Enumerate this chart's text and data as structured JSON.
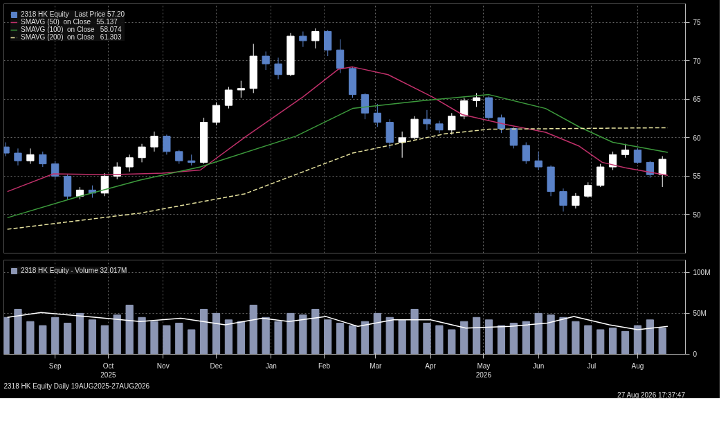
{
  "chart_data": [
    {
      "type": "candlestick",
      "legend": "top left",
      "grid": true,
      "tick_labels": "y",
      "xlim": [
        "2025-08-17",
        "2026-09-06"
      ],
      "ylim": [
        45,
        77.4
      ],
      "yticks": [
        50,
        55,
        60,
        65,
        70,
        75
      ],
      "xticks": [
        "2025-09-15",
        "2025-10-15",
        "2025-11-15",
        "2025-12-15",
        "2026-01-15",
        "2026-02-14",
        "2026-03-15",
        "2026-04-15",
        "2026-05-15",
        "2026-06-15",
        "2026-07-15",
        "2026-08-10"
      ],
      "series": [
        {
          "name": "2318 HK Equity   Last Price 57.20",
          "x": [
            "2025-08-18",
            "2025-08-25",
            "2025-09-01",
            "2025-09-08",
            "2025-09-15",
            "2025-09-22",
            "2025-09-29",
            "2025-10-06",
            "2025-10-13",
            "2025-10-20",
            "2025-10-27",
            "2025-11-03",
            "2025-11-10",
            "2025-11-17",
            "2025-11-24",
            "2025-12-01",
            "2025-12-08",
            "2025-12-15",
            "2025-12-22",
            "2025-12-29",
            "2026-01-05",
            "2026-01-12",
            "2026-01-19",
            "2026-01-26",
            "2026-02-02",
            "2026-02-09",
            "2026-02-16",
            "2026-02-23",
            "2026-03-02",
            "2026-03-09",
            "2026-03-16",
            "2026-03-23",
            "2026-03-30",
            "2026-04-06",
            "2026-04-13",
            "2026-04-20",
            "2026-04-27",
            "2026-05-04",
            "2026-05-11",
            "2026-05-18",
            "2026-05-25",
            "2026-06-01",
            "2026-06-08",
            "2026-06-15",
            "2026-06-22",
            "2026-06-29",
            "2026-07-06",
            "2026-07-13",
            "2026-07-20",
            "2026-07-27",
            "2026-08-03",
            "2026-08-10",
            "2026-08-17",
            "2026-08-24"
          ],
          "ohlc": [
            [
              58.8,
              59.4,
              57.6,
              58.0
            ],
            [
              58.0,
              58.6,
              56.4,
              57.0
            ],
            [
              57.0,
              58.6,
              56.6,
              57.8
            ],
            [
              57.8,
              58.2,
              56.2,
              56.6
            ],
            [
              56.6,
              57.0,
              54.6,
              55.0
            ],
            [
              55.0,
              55.2,
              52.0,
              52.4
            ],
            [
              52.4,
              53.6,
              52.0,
              53.2
            ],
            [
              53.2,
              53.8,
              52.2,
              52.8
            ],
            [
              52.8,
              55.4,
              52.4,
              55.0
            ],
            [
              55.0,
              56.8,
              54.6,
              56.2
            ],
            [
              56.2,
              57.8,
              55.6,
              57.4
            ],
            [
              57.4,
              59.2,
              56.8,
              58.8
            ],
            [
              58.8,
              60.8,
              58.2,
              60.2
            ],
            [
              60.2,
              60.4,
              57.8,
              58.2
            ],
            [
              58.2,
              58.4,
              56.6,
              57.0
            ],
            [
              57.0,
              57.8,
              56.4,
              56.8
            ],
            [
              56.8,
              62.6,
              56.6,
              62.0
            ],
            [
              62.0,
              64.6,
              61.6,
              64.2
            ],
            [
              64.2,
              66.6,
              63.8,
              66.2
            ],
            [
              66.2,
              67.4,
              65.2,
              66.4
            ],
            [
              66.4,
              72.2,
              65.8,
              70.6
            ],
            [
              70.6,
              71.2,
              68.8,
              69.6
            ],
            [
              69.6,
              70.4,
              67.6,
              68.2
            ],
            [
              68.2,
              73.6,
              68.0,
              73.2
            ],
            [
              73.2,
              73.8,
              71.8,
              72.6
            ],
            [
              72.6,
              74.2,
              71.6,
              73.8
            ],
            [
              73.8,
              74.0,
              70.6,
              71.4
            ],
            [
              71.4,
              72.8,
              68.4,
              69.0
            ],
            [
              69.0,
              69.2,
              65.2,
              65.6
            ],
            [
              65.6,
              65.8,
              62.4,
              63.2
            ],
            [
              63.2,
              64.4,
              61.4,
              62.0
            ],
            [
              62.0,
              62.4,
              58.6,
              59.4
            ],
            [
              59.4,
              60.8,
              57.4,
              60.0
            ],
            [
              60.0,
              62.8,
              59.8,
              62.4
            ],
            [
              62.4,
              63.6,
              61.0,
              61.8
            ],
            [
              61.8,
              62.2,
              60.6,
              61.0
            ],
            [
              61.0,
              63.2,
              60.4,
              62.8
            ],
            [
              62.8,
              65.2,
              62.4,
              64.8
            ],
            [
              64.8,
              65.8,
              64.0,
              65.2
            ],
            [
              65.2,
              65.4,
              62.2,
              62.6
            ],
            [
              62.6,
              63.0,
              60.6,
              61.2
            ],
            [
              61.2,
              61.4,
              58.6,
              59.0
            ],
            [
              59.0,
              59.4,
              56.6,
              57.0
            ],
            [
              57.0,
              58.2,
              55.8,
              56.2
            ],
            [
              56.2,
              56.4,
              52.4,
              53.0
            ],
            [
              53.0,
              53.4,
              50.4,
              51.2
            ],
            [
              51.2,
              52.8,
              50.8,
              52.4
            ],
            [
              52.4,
              54.2,
              52.2,
              53.8
            ],
            [
              53.8,
              56.6,
              53.6,
              56.2
            ],
            [
              56.2,
              58.2,
              55.8,
              57.8
            ],
            [
              57.8,
              59.2,
              57.4,
              58.4
            ],
            [
              58.4,
              58.6,
              56.6,
              56.8
            ],
            [
              56.8,
              57.0,
              54.8,
              55.2
            ],
            [
              55.2,
              57.6,
              53.6,
              57.2
            ]
          ],
          "colors": [
            "#5a82c8",
            "#5a82c8",
            "#ffffff",
            "#5a82c8",
            "#5a82c8",
            "#5a82c8",
            "#ffffff",
            "#5a82c8",
            "#ffffff",
            "#ffffff",
            "#ffffff",
            "#ffffff",
            "#ffffff",
            "#5a82c8",
            "#5a82c8",
            "#5a82c8",
            "#ffffff",
            "#ffffff",
            "#ffffff",
            "#ffffff",
            "#ffffff",
            "#5a82c8",
            "#5a82c8",
            "#ffffff",
            "#5a82c8",
            "#ffffff",
            "#5a82c8",
            "#5a82c8",
            "#5a82c8",
            "#5a82c8",
            "#5a82c8",
            "#5a82c8",
            "#ffffff",
            "#ffffff",
            "#5a82c8",
            "#5a82c8",
            "#ffffff",
            "#ffffff",
            "#ffffff",
            "#5a82c8",
            "#5a82c8",
            "#5a82c8",
            "#5a82c8",
            "#5a82c8",
            "#5a82c8",
            "#5a82c8",
            "#ffffff",
            "#ffffff",
            "#ffffff",
            "#ffffff",
            "#ffffff",
            "#5a82c8",
            "#5a82c8",
            "#ffffff"
          ]
        },
        {
          "type": "line",
          "name": "SMAVG (50)  on Close   55.137",
          "color": "#c0306a",
          "x": [
            "2025-08-19",
            "2025-09-14",
            "2025-10-15",
            "2025-11-15",
            "2025-12-06",
            "2026-01-01",
            "2026-02-02",
            "2026-02-22",
            "2026-03-02",
            "2026-03-22",
            "2026-04-16",
            "2026-05-03",
            "2026-05-28",
            "2026-06-19",
            "2026-07-08",
            "2026-07-21",
            "2026-08-03",
            "2026-08-27"
          ],
          "values": [
            53.0,
            55.3,
            55.2,
            55.4,
            55.8,
            60.2,
            65.3,
            68.9,
            69.2,
            68.2,
            65.3,
            63.0,
            61.7,
            60.7,
            58.9,
            56.8,
            56.1,
            55.1
          ]
        },
        {
          "type": "line",
          "name": "SMAVG (100)  on Close   58.074",
          "color": "#3c9a3c",
          "x": [
            "2025-08-19",
            "2025-09-26",
            "2025-11-02",
            "2025-12-06",
            "2026-01-29",
            "2026-03-02",
            "2026-04-10",
            "2026-05-18",
            "2026-06-19",
            "2026-07-08",
            "2026-07-27",
            "2026-08-27"
          ],
          "values": [
            49.6,
            52.2,
            54.5,
            56.2,
            60.2,
            63.8,
            64.8,
            65.6,
            63.8,
            61.4,
            59.4,
            58.1
          ]
        },
        {
          "type": "line",
          "name": "SMAVG (200)  on Close   61.303",
          "color": "#e8e4a0",
          "line_style": "dashed",
          "x": [
            "2025-08-19",
            "2025-11-02",
            "2025-12-31",
            "2026-03-02",
            "2026-04-23",
            "2026-05-18",
            "2026-08-27"
          ],
          "values": [
            48.1,
            50.2,
            52.7,
            58.0,
            60.5,
            61.1,
            61.3
          ]
        }
      ]
    },
    {
      "type": "bar",
      "legend": "top left",
      "grid": true,
      "xlim": [
        "2025-08-17",
        "2026-09-06"
      ],
      "ylim": [
        0,
        115
      ],
      "yticks": [
        0,
        {
          "value": 50,
          "label": "50M"
        },
        {
          "value": 100,
          "label": "100M"
        }
      ],
      "xticks": [
        {
          "value": "2025-09-15",
          "label": "Sep"
        },
        {
          "value": "2025-10-15",
          "label": "Oct\n2025"
        },
        {
          "value": "2025-11-15",
          "label": "Nov"
        },
        {
          "value": "2025-12-15",
          "label": "Dec"
        },
        {
          "value": "2026-01-15",
          "label": "Jan"
        },
        {
          "value": "2026-02-14",
          "label": "Feb"
        },
        {
          "value": "2026-03-15",
          "label": "Mar"
        },
        {
          "value": "2026-04-15",
          "label": "Apr"
        },
        {
          "value": "2026-05-15",
          "label": "May\n2026"
        },
        {
          "value": "2026-06-15",
          "label": "Jun"
        },
        {
          "value": "2026-07-15",
          "label": "Jul"
        },
        {
          "value": "2026-08-10",
          "label": "Aug"
        }
      ],
      "annotations": [
        "2318 HK Equity Daily 19AUG2025-27AUG2026",
        "27 Aug 2026 17:37:47"
      ],
      "series": [
        {
          "name": "2318 HK Equity - Volume 32.017M",
          "color": "#8c96b4",
          "x": [
            "2025-08-18",
            "2025-08-25",
            "2025-09-01",
            "2025-09-08",
            "2025-09-15",
            "2025-09-22",
            "2025-09-29",
            "2025-10-06",
            "2025-10-13",
            "2025-10-20",
            "2025-10-27",
            "2025-11-03",
            "2025-11-10",
            "2025-11-17",
            "2025-11-24",
            "2025-12-01",
            "2025-12-08",
            "2025-12-15",
            "2025-12-22",
            "2025-12-29",
            "2026-01-05",
            "2026-01-12",
            "2026-01-19",
            "2026-01-26",
            "2026-02-02",
            "2026-02-09",
            "2026-02-16",
            "2026-02-23",
            "2026-03-02",
            "2026-03-09",
            "2026-03-16",
            "2026-03-23",
            "2026-03-30",
            "2026-04-06",
            "2026-04-13",
            "2026-04-20",
            "2026-04-27",
            "2026-05-04",
            "2026-05-11",
            "2026-05-18",
            "2026-05-25",
            "2026-06-01",
            "2026-06-08",
            "2026-06-15",
            "2026-06-22",
            "2026-06-29",
            "2026-07-06",
            "2026-07-13",
            "2026-07-20",
            "2026-07-27",
            "2026-08-03",
            "2026-08-10",
            "2026-08-17",
            "2026-08-24"
          ],
          "values": [
            45,
            55,
            40,
            35,
            45,
            38,
            50,
            42,
            35,
            48,
            60,
            45,
            40,
            35,
            38,
            30,
            55,
            50,
            42,
            40,
            60,
            45,
            40,
            50,
            48,
            55,
            42,
            38,
            35,
            40,
            50,
            45,
            42,
            55,
            38,
            35,
            30,
            40,
            45,
            42,
            35,
            38,
            40,
            50,
            48,
            45,
            40,
            35,
            30,
            32,
            28,
            35,
            42,
            32
          ]
        },
        {
          "type": "line",
          "color": "#ffffff",
          "x": [
            "2025-08-19",
            "2025-09-07",
            "2025-10-08",
            "2025-11-02",
            "2025-11-25",
            "2025-12-20",
            "2026-01-10",
            "2026-01-25",
            "2026-02-15",
            "2026-03-05",
            "2026-03-25",
            "2026-04-15",
            "2026-05-05",
            "2026-05-30",
            "2026-06-20",
            "2026-07-05",
            "2026-07-25",
            "2026-08-10",
            "2026-08-27"
          ],
          "values": [
            45,
            51,
            45,
            40,
            44,
            36,
            44,
            40,
            46,
            34,
            42,
            42,
            32,
            34,
            38,
            46,
            36,
            30,
            34
          ]
        }
      ]
    }
  ]
}
